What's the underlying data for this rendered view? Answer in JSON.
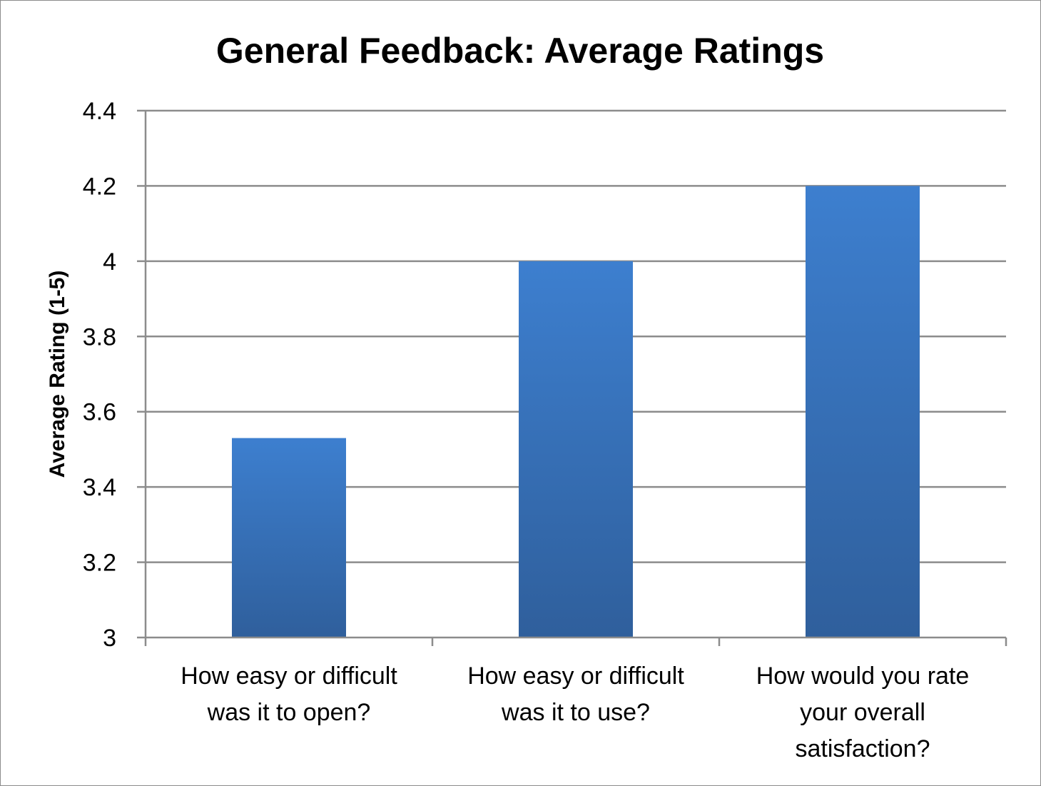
{
  "chart_data": {
    "type": "bar",
    "title": "General Feedback: Average Ratings",
    "xlabel": "",
    "ylabel": "Average Rating (1-5)",
    "ylim": [
      3,
      4.4
    ],
    "yticks": [
      "3",
      "3.2",
      "3.4",
      "3.6",
      "3.8",
      "4",
      "4.2",
      "4.4"
    ],
    "ytick_values": [
      3,
      3.2,
      3.4,
      3.6,
      3.8,
      4,
      4.2,
      4.4
    ],
    "grid": true,
    "legend": "none",
    "categories": [
      [
        "How easy or difficult",
        "was it to open?"
      ],
      [
        "How easy or difficult",
        "was it to use?"
      ],
      [
        "How would you rate",
        "your overall",
        "satisfaction?"
      ]
    ],
    "values": [
      3.53,
      4.0,
      4.2
    ],
    "colors": {
      "bar_top": "#3d7fcf",
      "bar_bottom": "#2f5f9c",
      "grid": "#8c8c8c",
      "axis": "#8c8c8c"
    }
  }
}
